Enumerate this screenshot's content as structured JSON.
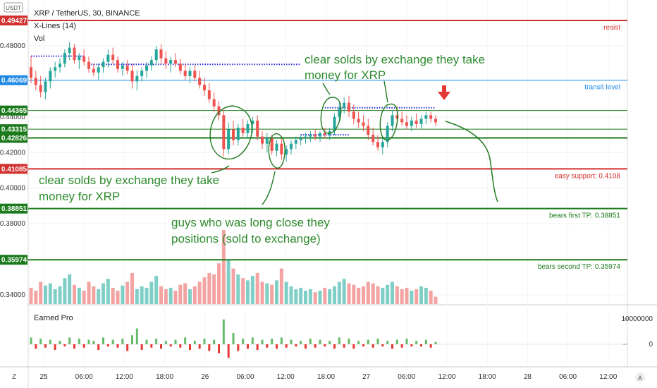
{
  "header": {
    "symbol": "XRP / TetherUS, 30, BINANCE",
    "indicator_1": "X-Lines (14)",
    "indicator_2": "Vol",
    "currency_badge": "USDT",
    "sub_indicator": "Earned Pro"
  },
  "colors": {
    "up": "#26a69a",
    "down": "#ef5350",
    "vol_up": "#7fcfc6",
    "vol_down": "#f4a3a3",
    "resist": "#d32f2f",
    "transit": "#1e88e5",
    "green": "#1b7a1b",
    "annotation": "#2e8b2e",
    "xlines": "#2525d8"
  },
  "chart_data": {
    "type": "candlestick",
    "price_axis": {
      "ticks": [
        "0.48000",
        "0.44000",
        "0.42000",
        "0.40000",
        "0.38000",
        "0.34000"
      ],
      "range": [
        0.334,
        0.498
      ]
    },
    "time_axis": {
      "ticks": [
        "25",
        "06:00",
        "12:00",
        "18:00",
        "26",
        "06:00",
        "12:00",
        "18:00",
        "27",
        "06:00",
        "12:00",
        "18:00",
        "28",
        "06:00",
        "12:00"
      ]
    },
    "levels": [
      {
        "value": 0.49427,
        "badge": "0.49427",
        "label": "resist",
        "color": "#d32f2f",
        "width": 2
      },
      {
        "value": 0.46069,
        "badge": "0.46069",
        "label": "transit level",
        "color": "#1e88e5",
        "width": 1
      },
      {
        "value": 0.44365,
        "badge": "0.44365",
        "label": "",
        "color": "#1b7a1b",
        "width": 1
      },
      {
        "value": 0.43315,
        "badge": "0.43315",
        "label": "",
        "color": "#1b7a1b",
        "width": 1
      },
      {
        "value": 0.42826,
        "badge": "0.42826",
        "label": "",
        "color": "#1b7a1b",
        "width": 2
      },
      {
        "value": 0.41085,
        "badge": "0.41085",
        "label": "easy support: 0.4108",
        "color": "#d32f2f",
        "width": 2
      },
      {
        "value": 0.38851,
        "badge": "0.38851",
        "label": "bears first TP: 0.38851",
        "color": "#1b7a1b",
        "width": 2
      },
      {
        "value": 0.35974,
        "badge": "0.35974",
        "label": "bears second TP: 0.35974",
        "color": "#1b7a1b",
        "width": 2
      }
    ],
    "candles": [
      {
        "o": 0.468,
        "h": 0.474,
        "l": 0.459,
        "c": 0.462
      },
      {
        "o": 0.462,
        "h": 0.466,
        "l": 0.455,
        "c": 0.458
      },
      {
        "o": 0.458,
        "h": 0.463,
        "l": 0.451,
        "c": 0.454
      },
      {
        "o": 0.454,
        "h": 0.462,
        "l": 0.45,
        "c": 0.46
      },
      {
        "o": 0.46,
        "h": 0.468,
        "l": 0.456,
        "c": 0.466
      },
      {
        "o": 0.466,
        "h": 0.471,
        "l": 0.462,
        "c": 0.468
      },
      {
        "o": 0.468,
        "h": 0.473,
        "l": 0.465,
        "c": 0.47
      },
      {
        "o": 0.47,
        "h": 0.478,
        "l": 0.468,
        "c": 0.476
      },
      {
        "o": 0.476,
        "h": 0.482,
        "l": 0.472,
        "c": 0.479
      },
      {
        "o": 0.479,
        "h": 0.481,
        "l": 0.47,
        "c": 0.472
      },
      {
        "o": 0.472,
        "h": 0.476,
        "l": 0.467,
        "c": 0.474
      },
      {
        "o": 0.474,
        "h": 0.478,
        "l": 0.469,
        "c": 0.471
      },
      {
        "o": 0.471,
        "h": 0.474,
        "l": 0.465,
        "c": 0.467
      },
      {
        "o": 0.467,
        "h": 0.47,
        "l": 0.463,
        "c": 0.465
      },
      {
        "o": 0.465,
        "h": 0.47,
        "l": 0.461,
        "c": 0.468
      },
      {
        "o": 0.468,
        "h": 0.473,
        "l": 0.465,
        "c": 0.471
      },
      {
        "o": 0.471,
        "h": 0.478,
        "l": 0.468,
        "c": 0.475
      },
      {
        "o": 0.475,
        "h": 0.479,
        "l": 0.47,
        "c": 0.472
      },
      {
        "o": 0.472,
        "h": 0.474,
        "l": 0.465,
        "c": 0.467
      },
      {
        "o": 0.467,
        "h": 0.471,
        "l": 0.463,
        "c": 0.469
      },
      {
        "o": 0.469,
        "h": 0.472,
        "l": 0.464,
        "c": 0.466
      },
      {
        "o": 0.466,
        "h": 0.47,
        "l": 0.456,
        "c": 0.46
      },
      {
        "o": 0.46,
        "h": 0.466,
        "l": 0.455,
        "c": 0.463
      },
      {
        "o": 0.463,
        "h": 0.468,
        "l": 0.46,
        "c": 0.466
      },
      {
        "o": 0.466,
        "h": 0.471,
        "l": 0.462,
        "c": 0.469
      },
      {
        "o": 0.469,
        "h": 0.474,
        "l": 0.466,
        "c": 0.472
      },
      {
        "o": 0.472,
        "h": 0.48,
        "l": 0.469,
        "c": 0.478
      },
      {
        "o": 0.478,
        "h": 0.481,
        "l": 0.47,
        "c": 0.473
      },
      {
        "o": 0.473,
        "h": 0.477,
        "l": 0.467,
        "c": 0.47
      },
      {
        "o": 0.47,
        "h": 0.474,
        "l": 0.465,
        "c": 0.472
      },
      {
        "o": 0.472,
        "h": 0.476,
        "l": 0.468,
        "c": 0.47
      },
      {
        "o": 0.47,
        "h": 0.473,
        "l": 0.464,
        "c": 0.466
      },
      {
        "o": 0.466,
        "h": 0.47,
        "l": 0.461,
        "c": 0.463
      },
      {
        "o": 0.463,
        "h": 0.468,
        "l": 0.459,
        "c": 0.466
      },
      {
        "o": 0.466,
        "h": 0.469,
        "l": 0.46,
        "c": 0.462
      },
      {
        "o": 0.462,
        "h": 0.466,
        "l": 0.456,
        "c": 0.458
      },
      {
        "o": 0.458,
        "h": 0.462,
        "l": 0.452,
        "c": 0.455
      },
      {
        "o": 0.455,
        "h": 0.459,
        "l": 0.448,
        "c": 0.45
      },
      {
        "o": 0.45,
        "h": 0.454,
        "l": 0.443,
        "c": 0.446
      },
      {
        "o": 0.446,
        "h": 0.449,
        "l": 0.438,
        "c": 0.441
      },
      {
        "o": 0.441,
        "h": 0.444,
        "l": 0.418,
        "c": 0.422
      },
      {
        "o": 0.422,
        "h": 0.437,
        "l": 0.419,
        "c": 0.433
      },
      {
        "o": 0.433,
        "h": 0.438,
        "l": 0.424,
        "c": 0.427
      },
      {
        "o": 0.427,
        "h": 0.436,
        "l": 0.424,
        "c": 0.434
      },
      {
        "o": 0.434,
        "h": 0.439,
        "l": 0.429,
        "c": 0.431
      },
      {
        "o": 0.431,
        "h": 0.438,
        "l": 0.428,
        "c": 0.436
      },
      {
        "o": 0.436,
        "h": 0.44,
        "l": 0.431,
        "c": 0.438
      },
      {
        "o": 0.438,
        "h": 0.441,
        "l": 0.427,
        "c": 0.429
      },
      {
        "o": 0.429,
        "h": 0.432,
        "l": 0.422,
        "c": 0.425
      },
      {
        "o": 0.425,
        "h": 0.431,
        "l": 0.42,
        "c": 0.428
      },
      {
        "o": 0.428,
        "h": 0.43,
        "l": 0.419,
        "c": 0.421
      },
      {
        "o": 0.421,
        "h": 0.427,
        "l": 0.418,
        "c": 0.425
      },
      {
        "o": 0.425,
        "h": 0.428,
        "l": 0.416,
        "c": 0.419
      },
      {
        "o": 0.419,
        "h": 0.424,
        "l": 0.415,
        "c": 0.422
      },
      {
        "o": 0.422,
        "h": 0.427,
        "l": 0.419,
        "c": 0.425
      },
      {
        "o": 0.425,
        "h": 0.429,
        "l": 0.422,
        "c": 0.427
      },
      {
        "o": 0.427,
        "h": 0.43,
        "l": 0.424,
        "c": 0.428
      },
      {
        "o": 0.428,
        "h": 0.431,
        "l": 0.425,
        "c": 0.429
      },
      {
        "o": 0.429,
        "h": 0.432,
        "l": 0.426,
        "c": 0.43
      },
      {
        "o": 0.43,
        "h": 0.433,
        "l": 0.427,
        "c": 0.429
      },
      {
        "o": 0.429,
        "h": 0.432,
        "l": 0.426,
        "c": 0.431
      },
      {
        "o": 0.431,
        "h": 0.434,
        "l": 0.428,
        "c": 0.43
      },
      {
        "o": 0.43,
        "h": 0.434,
        "l": 0.427,
        "c": 0.432
      },
      {
        "o": 0.432,
        "h": 0.442,
        "l": 0.43,
        "c": 0.44
      },
      {
        "o": 0.44,
        "h": 0.448,
        "l": 0.437,
        "c": 0.445
      },
      {
        "o": 0.445,
        "h": 0.451,
        "l": 0.442,
        "c": 0.448
      },
      {
        "o": 0.448,
        "h": 0.452,
        "l": 0.44,
        "c": 0.443
      },
      {
        "o": 0.443,
        "h": 0.447,
        "l": 0.436,
        "c": 0.439
      },
      {
        "o": 0.439,
        "h": 0.443,
        "l": 0.434,
        "c": 0.437
      },
      {
        "o": 0.437,
        "h": 0.441,
        "l": 0.432,
        "c": 0.435
      },
      {
        "o": 0.435,
        "h": 0.439,
        "l": 0.427,
        "c": 0.43
      },
      {
        "o": 0.43,
        "h": 0.434,
        "l": 0.424,
        "c": 0.426
      },
      {
        "o": 0.426,
        "h": 0.43,
        "l": 0.421,
        "c": 0.423
      },
      {
        "o": 0.423,
        "h": 0.428,
        "l": 0.419,
        "c": 0.426
      },
      {
        "o": 0.426,
        "h": 0.437,
        "l": 0.423,
        "c": 0.435
      },
      {
        "o": 0.435,
        "h": 0.444,
        "l": 0.432,
        "c": 0.441
      },
      {
        "o": 0.441,
        "h": 0.446,
        "l": 0.436,
        "c": 0.439
      },
      {
        "o": 0.439,
        "h": 0.443,
        "l": 0.435,
        "c": 0.437
      },
      {
        "o": 0.437,
        "h": 0.441,
        "l": 0.433,
        "c": 0.435
      },
      {
        "o": 0.435,
        "h": 0.44,
        "l": 0.432,
        "c": 0.438
      },
      {
        "o": 0.438,
        "h": 0.442,
        "l": 0.434,
        "c": 0.436
      },
      {
        "o": 0.436,
        "h": 0.441,
        "l": 0.433,
        "c": 0.439
      },
      {
        "o": 0.439,
        "h": 0.443,
        "l": 0.436,
        "c": 0.441
      },
      {
        "o": 0.441,
        "h": 0.443,
        "l": 0.437,
        "c": 0.439
      },
      {
        "o": 0.439,
        "h": 0.441,
        "l": 0.435,
        "c": 0.437
      }
    ],
    "volumes": [
      22,
      18,
      30,
      25,
      28,
      20,
      24,
      35,
      40,
      26,
      22,
      18,
      30,
      24,
      20,
      28,
      34,
      22,
      18,
      25,
      30,
      42,
      20,
      24,
      22,
      30,
      38,
      24,
      20,
      22,
      18,
      26,
      28,
      20,
      24,
      30,
      36,
      42,
      40,
      55,
      100,
      60,
      48,
      40,
      35,
      32,
      38,
      42,
      30,
      28,
      26,
      32,
      48,
      30,
      24,
      20,
      22,
      18,
      20,
      16,
      18,
      22,
      20,
      24,
      30,
      34,
      28,
      26,
      22,
      24,
      30,
      28,
      24,
      22,
      26,
      30,
      24,
      20,
      22,
      18,
      20,
      24,
      22,
      18,
      10
    ],
    "oscillator": [
      6,
      -4,
      5,
      -3,
      4,
      -5,
      3,
      -2,
      6,
      -4,
      5,
      -3,
      4,
      3,
      -5,
      6,
      -2,
      4,
      -3,
      5,
      -6,
      8,
      14,
      -5,
      4,
      -3,
      5,
      -4,
      3,
      -2,
      4,
      -3,
      6,
      -5,
      3,
      -4,
      5,
      -6,
      4,
      -8,
      22,
      -12,
      10,
      -6,
      5,
      -4,
      6,
      -5,
      4,
      -3,
      5,
      -4,
      6,
      -3,
      4,
      -2,
      3,
      -4,
      5,
      -3,
      4,
      -2,
      3,
      -4,
      6,
      -3,
      5,
      -4,
      3,
      -2,
      4,
      -3,
      5,
      -2,
      3,
      -4,
      4,
      -3,
      5,
      -2,
      3,
      -2,
      4,
      -3,
      2
    ],
    "oscillator_axis": [
      "10000000",
      "0"
    ],
    "annotations": [
      {
        "text_lines": [
          "clear solds by exchange they take",
          "money for XRP"
        ]
      },
      {
        "text_lines": [
          "clear solds by exchange they take",
          "money for XRP"
        ]
      },
      {
        "text_lines": [
          "guys who was long close they",
          "positions (sold to exchange)"
        ]
      }
    ]
  }
}
